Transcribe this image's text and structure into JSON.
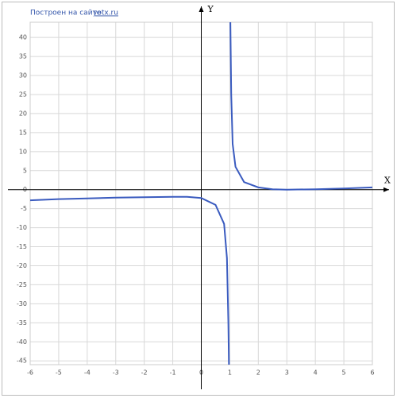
{
  "credit_text": "Построен на сайте",
  "credit_link": "yotx.ru",
  "chart_data": {
    "type": "line",
    "x_label": "X",
    "y_label": "Y",
    "x": [
      -6,
      -5,
      -4,
      -3,
      -2,
      -1,
      -0.5,
      0,
      0.5,
      0.8,
      0.9,
      0.95,
      0.97,
      1,
      1.02,
      1.05,
      1.1,
      1.2,
      1.5,
      2,
      2.5,
      3,
      4,
      5,
      6
    ],
    "values": [
      -2.8,
      -2.5,
      -2.3,
      -2.1,
      -2.0,
      -1.9,
      -1.9,
      -2.2,
      -4,
      -9,
      -18,
      -35,
      -46,
      null,
      44,
      25,
      12,
      6,
      2,
      0.6,
      0.1,
      0,
      0.1,
      0.3,
      0.6
    ],
    "color": "#3a5bbf",
    "xlim": [
      -6,
      6
    ],
    "xticks": [
      -6,
      -5,
      -4,
      -3,
      -2,
      -1,
      0,
      1,
      2,
      3,
      4,
      5,
      6
    ],
    "ylim": [
      -46,
      44
    ],
    "yticks": [
      -45,
      -40,
      -35,
      -30,
      -25,
      -20,
      -15,
      -10,
      -5,
      0,
      5,
      10,
      15,
      20,
      25,
      30,
      35,
      40
    ],
    "grid": true
  }
}
